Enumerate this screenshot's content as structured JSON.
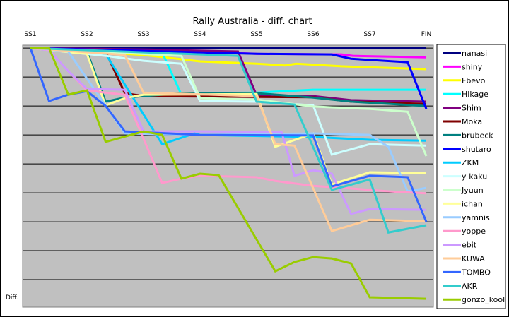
{
  "chart_data": {
    "type": "line",
    "title": "Rally Australia - diff. chart",
    "ylabel": "Diff.",
    "categories": [
      "SS1",
      "SS2",
      "SS3",
      "SS4",
      "SS5",
      "SS6",
      "SS7",
      "FIN"
    ],
    "x_axis_position": "top",
    "ylim": [
      -8.95,
      0.1
    ],
    "grid": true,
    "legend": "right",
    "plot_background": "#C0C0C0",
    "series": [
      {
        "name": "nanasi",
        "color": "#000080",
        "points": [
          [
            0,
            0
          ],
          [
            7,
            0
          ]
        ]
      },
      {
        "name": "shiny",
        "color": "#FF00FF",
        "points": [
          [
            0,
            0
          ],
          [
            3,
            -0.12
          ],
          [
            4,
            -0.2
          ],
          [
            5.5,
            -0.22
          ],
          [
            5.7,
            -0.27
          ],
          [
            7,
            -0.32
          ]
        ]
      },
      {
        "name": "Fbevo",
        "color": "#FFFF00",
        "points": [
          [
            0,
            0
          ],
          [
            2,
            -0.24
          ],
          [
            3,
            -0.46
          ],
          [
            4,
            -0.54
          ],
          [
            4.5,
            -0.6
          ],
          [
            4.7,
            -0.54
          ],
          [
            5.5,
            -0.63
          ],
          [
            7,
            -0.73
          ]
        ]
      },
      {
        "name": "Hikage",
        "color": "#00FFFF",
        "points": [
          [
            0,
            0
          ],
          [
            2.33,
            -0.15
          ],
          [
            2.67,
            -1.61
          ],
          [
            3,
            -1.56
          ],
          [
            4,
            -1.54
          ],
          [
            5,
            -1.44
          ],
          [
            7,
            -1.44
          ]
        ]
      },
      {
        "name": "Shim",
        "color": "#800080",
        "points": [
          [
            0,
            0
          ],
          [
            2,
            -0.05
          ],
          [
            3.67,
            -0.12
          ],
          [
            4,
            -1.63
          ],
          [
            4.33,
            -1.68
          ],
          [
            5,
            -1.66
          ],
          [
            5.67,
            -1.8
          ],
          [
            7,
            -1.85
          ]
        ]
      },
      {
        "name": "Moka",
        "color": "#800000",
        "points": [
          [
            0,
            0
          ],
          [
            1.33,
            -0.12
          ],
          [
            1.67,
            -1.56
          ],
          [
            2,
            -1.66
          ],
          [
            5,
            -1.7
          ],
          [
            5.67,
            -1.85
          ],
          [
            7,
            -1.93
          ]
        ]
      },
      {
        "name": "brubeck",
        "color": "#008080",
        "points": [
          [
            0,
            0
          ],
          [
            1,
            -0.12
          ],
          [
            1.33,
            -1.85
          ],
          [
            1.67,
            -1.71
          ],
          [
            2.67,
            -1.56
          ],
          [
            4,
            -1.56
          ],
          [
            5,
            -1.71
          ],
          [
            5.67,
            -1.85
          ],
          [
            7,
            -2.0
          ]
        ]
      },
      {
        "name": "shutaro",
        "color": "#0000FF",
        "points": [
          [
            0,
            0
          ],
          [
            4,
            -0.2
          ],
          [
            5.33,
            -0.22
          ],
          [
            5.67,
            -0.37
          ],
          [
            6.67,
            -0.49
          ],
          [
            7,
            -2.1
          ]
        ]
      },
      {
        "name": "ZKM",
        "color": "#00CCFF",
        "points": [
          [
            0,
            0
          ],
          [
            1.33,
            -0.2
          ],
          [
            2.33,
            -3.32
          ],
          [
            2.9,
            -2.95
          ],
          [
            3,
            -3.0
          ],
          [
            5,
            -3.07
          ],
          [
            6,
            -3.17
          ],
          [
            7,
            -3.2
          ]
        ]
      },
      {
        "name": "y-kaku",
        "color": "#CCFFFF",
        "points": [
          [
            0,
            0
          ],
          [
            1.33,
            -0.27
          ],
          [
            2,
            -0.44
          ],
          [
            2.67,
            -0.54
          ],
          [
            3,
            -1.83
          ],
          [
            4,
            -1.85
          ],
          [
            5,
            -1.98
          ],
          [
            5.33,
            -3.68
          ],
          [
            6,
            -3.32
          ],
          [
            7,
            -3.37
          ]
        ]
      },
      {
        "name": "Jyuun",
        "color": "#CCFFCC",
        "points": [
          [
            0,
            0
          ],
          [
            2.67,
            -0.27
          ],
          [
            3,
            -1.73
          ],
          [
            4,
            -1.78
          ],
          [
            5,
            -2.02
          ],
          [
            6,
            -2.1
          ],
          [
            6.67,
            -2.2
          ],
          [
            7,
            -3.73
          ]
        ]
      },
      {
        "name": "ichan",
        "color": "#FFFF99",
        "points": [
          [
            0,
            0
          ],
          [
            1,
            -0.2
          ],
          [
            1.33,
            -1.98
          ],
          [
            1.67,
            -1.73
          ],
          [
            2,
            -1.61
          ],
          [
            4,
            -1.59
          ],
          [
            4.33,
            -3.41
          ],
          [
            5,
            -2.95
          ],
          [
            5.33,
            -4.71
          ],
          [
            6,
            -4.29
          ],
          [
            7,
            -4.32
          ]
        ]
      },
      {
        "name": "yamnis",
        "color": "#99CCFF",
        "points": [
          [
            0,
            0
          ],
          [
            0.67,
            -0.12
          ],
          [
            1.67,
            -2.95
          ],
          [
            3,
            -3.0
          ],
          [
            5,
            -2.95
          ],
          [
            6,
            -3.0
          ],
          [
            6.33,
            -3.41
          ],
          [
            6.67,
            -4.95
          ],
          [
            7,
            -4.83
          ]
        ]
      },
      {
        "name": "yoppe",
        "color": "#FF99CC",
        "points": [
          [
            0,
            0
          ],
          [
            0.33,
            -0.07
          ],
          [
            0.67,
            -0.8
          ],
          [
            1,
            -1.46
          ],
          [
            1.33,
            -1.54
          ],
          [
            1.67,
            -1.61
          ],
          [
            2.33,
            -4.66
          ],
          [
            2.67,
            -4.51
          ],
          [
            3,
            -4.41
          ],
          [
            4,
            -4.46
          ],
          [
            4.33,
            -4.59
          ],
          [
            5,
            -4.76
          ],
          [
            5.67,
            -4.85
          ],
          [
            6.33,
            -4.95
          ],
          [
            7,
            -5.02
          ]
        ]
      },
      {
        "name": "ebit",
        "color": "#CC99FF",
        "points": [
          [
            0,
            0
          ],
          [
            0.33,
            -0.07
          ],
          [
            0.67,
            -0.8
          ],
          [
            1,
            -1.41
          ],
          [
            1.67,
            -1.44
          ],
          [
            2,
            -2.88
          ],
          [
            3,
            -2.88
          ],
          [
            4.44,
            -2.9
          ],
          [
            4.67,
            -4.41
          ],
          [
            5,
            -4.22
          ],
          [
            5.33,
            -4.34
          ],
          [
            5.67,
            -5.73
          ],
          [
            6,
            -5.56
          ],
          [
            7,
            -5.59
          ]
        ]
      },
      {
        "name": "KUWA",
        "color": "#FFCC99",
        "points": [
          [
            0,
            0
          ],
          [
            1.67,
            -0.24
          ],
          [
            2,
            -1.54
          ],
          [
            4,
            -1.66
          ],
          [
            4.33,
            -3.32
          ],
          [
            4.67,
            -3.37
          ],
          [
            5.33,
            -6.32
          ],
          [
            6,
            -5.93
          ],
          [
            7,
            -5.98
          ]
        ]
      },
      {
        "name": "TOMBO",
        "color": "#3366FF",
        "points": [
          [
            0,
            0
          ],
          [
            0.33,
            -1.83
          ],
          [
            0.67,
            -1.61
          ],
          [
            1,
            -1.49
          ],
          [
            1.33,
            -2.0
          ],
          [
            1.67,
            -2.88
          ],
          [
            3,
            -3.0
          ],
          [
            5,
            -3.02
          ],
          [
            5.33,
            -4.78
          ],
          [
            6,
            -4.41
          ],
          [
            6.67,
            -4.46
          ],
          [
            7,
            -6.0
          ]
        ]
      },
      {
        "name": "AKR",
        "color": "#33CCCC",
        "points": [
          [
            0,
            0
          ],
          [
            3.67,
            -0.27
          ],
          [
            4,
            -1.85
          ],
          [
            4.33,
            -1.9
          ],
          [
            4.67,
            -1.95
          ],
          [
            5.33,
            -4.9
          ],
          [
            6,
            -4.54
          ],
          [
            6.33,
            -6.37
          ],
          [
            7,
            -6.12
          ]
        ]
      },
      {
        "name": "gonzo_kool",
        "color": "#99CC00",
        "points": [
          [
            0,
            0
          ],
          [
            0.33,
            0
          ],
          [
            0.67,
            -1.61
          ],
          [
            1,
            -1.46
          ],
          [
            1.33,
            -3.24
          ],
          [
            2,
            -2.88
          ],
          [
            2.33,
            -3.0
          ],
          [
            2.67,
            -4.51
          ],
          [
            3,
            -4.34
          ],
          [
            3.33,
            -4.39
          ],
          [
            4.33,
            -7.71
          ],
          [
            4.67,
            -7.39
          ],
          [
            5,
            -7.22
          ],
          [
            5.33,
            -7.27
          ],
          [
            5.67,
            -7.44
          ],
          [
            6,
            -8.61
          ],
          [
            7,
            -8.66
          ]
        ]
      }
    ]
  }
}
